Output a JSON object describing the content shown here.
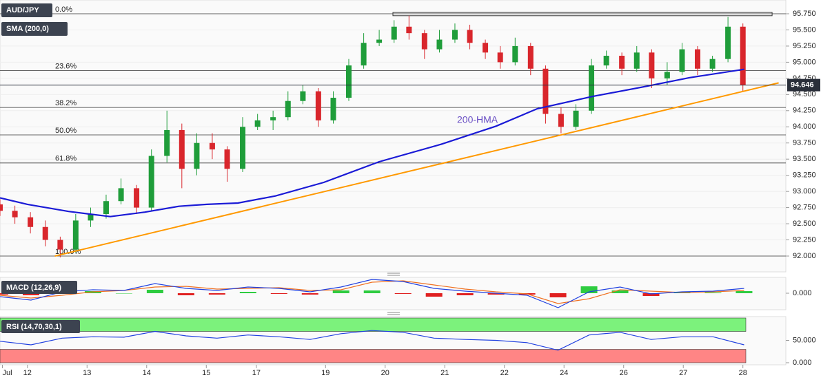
{
  "chart_data": [
    {
      "type": "candlestick",
      "symbol": "AUD/JPY",
      "indicator_label": "SMA (200,0)",
      "xlim": [
        -0.46,
        12.72
      ],
      "ylim": [
        91.755,
        95.963
      ],
      "yticks": [
        {
          "value": 95.75,
          "label": "95.750"
        },
        {
          "value": 95.5,
          "label": "95.500"
        },
        {
          "value": 95.25,
          "label": "95.250"
        },
        {
          "value": 95,
          "label": "95.000"
        },
        {
          "value": 94.75,
          "label": "94.750"
        },
        {
          "value": 94.5,
          "label": "94.500"
        },
        {
          "value": 94.25,
          "label": "94.250"
        },
        {
          "value": 94,
          "label": "94.000"
        },
        {
          "value": 93.75,
          "label": "93.750"
        },
        {
          "value": 93.5,
          "label": "93.500"
        },
        {
          "value": 93.25,
          "label": "93.250"
        },
        {
          "value": 93,
          "label": "93.000"
        },
        {
          "value": 92.75,
          "label": "92.750"
        },
        {
          "value": 92.5,
          "label": "92.500"
        },
        {
          "value": 92.25,
          "label": "92.250"
        },
        {
          "value": 92,
          "label": "92.000"
        }
      ],
      "grid": true,
      "up_color": "#1f9d3a",
      "down_color": "#d9262c",
      "candles": {
        "x": [
          -0.46,
          -0.21,
          0.05,
          0.3,
          0.55,
          0.81,
          1.06,
          1.32,
          1.57,
          1.83,
          2.08,
          2.34,
          2.59,
          2.84,
          3.1,
          3.35,
          3.61,
          3.86,
          4.12,
          4.37,
          4.62,
          4.88,
          5.13,
          5.39,
          5.64,
          5.9,
          6.15,
          6.4,
          6.66,
          6.91,
          7.17,
          7.42,
          7.68,
          7.93,
          8.18,
          8.44,
          8.69,
          8.95,
          9.2,
          9.46,
          9.71,
          9.97,
          10.22,
          10.47,
          10.73,
          10.98,
          11.24,
          11.49,
          11.75,
          12.0
        ],
        "open": [
          92.8,
          92.7,
          92.6,
          92.45,
          92.25,
          92.1,
          92.55,
          92.65,
          92.85,
          93.05,
          92.75,
          93.55,
          93.95,
          93.35,
          93.75,
          93.65,
          93.35,
          94.0,
          94.1,
          94.15,
          94.4,
          94.55,
          94.1,
          94.45,
          94.95,
          95.3,
          95.35,
          95.55,
          95.45,
          95.2,
          95.35,
          95.5,
          95.3,
          95.15,
          95.0,
          95.25,
          94.9,
          94.2,
          94.0,
          94.25,
          94.95,
          95.1,
          94.9,
          95.15,
          94.75,
          94.85,
          95.2,
          94.9,
          95.05,
          95.55
        ],
        "high": [
          92.88,
          92.78,
          92.68,
          92.55,
          92.3,
          92.65,
          92.75,
          92.95,
          93.2,
          93.1,
          93.65,
          94.25,
          94.05,
          93.9,
          93.9,
          93.7,
          94.15,
          94.2,
          94.25,
          94.55,
          94.65,
          94.6,
          94.55,
          95.05,
          95.45,
          95.5,
          95.65,
          95.72,
          95.5,
          95.5,
          95.6,
          95.58,
          95.35,
          95.25,
          95.38,
          95.3,
          94.95,
          94.3,
          94.35,
          95.05,
          95.18,
          95.15,
          95.25,
          95.2,
          95.0,
          95.3,
          95.25,
          95.1,
          95.7,
          95.6
        ],
        "low": [
          92.62,
          92.5,
          92.35,
          92.15,
          91.98,
          92.05,
          92.45,
          92.58,
          92.8,
          92.65,
          92.7,
          93.45,
          93.05,
          93.25,
          93.5,
          93.15,
          93.3,
          93.95,
          93.95,
          94.1,
          94.35,
          94.0,
          94.05,
          94.4,
          94.9,
          95.25,
          95.3,
          95.35,
          95.05,
          95.15,
          95.3,
          95.2,
          95.05,
          94.9,
          94.95,
          94.8,
          94.05,
          93.9,
          93.95,
          94.2,
          94.9,
          94.8,
          94.85,
          94.6,
          94.65,
          94.8,
          94.8,
          94.85,
          95.0,
          94.55
        ],
        "close": [
          92.7,
          92.6,
          92.45,
          92.25,
          92.1,
          92.55,
          92.65,
          92.85,
          93.05,
          92.75,
          93.55,
          93.95,
          93.35,
          93.75,
          93.65,
          93.35,
          94.0,
          94.1,
          94.15,
          94.4,
          94.55,
          94.1,
          94.45,
          94.95,
          95.3,
          95.35,
          95.55,
          95.45,
          95.2,
          95.35,
          95.5,
          95.3,
          95.15,
          95.0,
          95.25,
          94.9,
          94.2,
          94.0,
          94.25,
          94.95,
          95.1,
          94.9,
          95.15,
          94.75,
          94.85,
          95.2,
          94.9,
          95.05,
          95.55,
          94.65
        ]
      },
      "hma": {
        "name": "200-HMA",
        "color": "#1a1ad6",
        "x": [
          -0.46,
          0,
          0.69,
          1.39,
          1.97,
          2.54,
          3.01,
          3.53,
          4.16,
          4.97,
          5.9,
          6.94,
          7.86,
          8.55,
          9.48,
          10.4,
          11.1,
          12.02
        ],
        "values": [
          92.9,
          92.8,
          92.69,
          92.61,
          92.68,
          92.77,
          92.8,
          92.82,
          92.93,
          93.14,
          93.46,
          93.73,
          94.01,
          94.28,
          94.47,
          94.63,
          94.76,
          94.89
        ]
      },
      "trendline": {
        "color": "#ff9900",
        "x": [
          0.46,
          12.6
        ],
        "values": [
          92.0,
          94.68
        ]
      },
      "fib_levels": [
        {
          "label": "0.0%",
          "value": 95.75
        },
        {
          "label": "23.6%",
          "value": 94.87
        },
        {
          "label": "38.2%",
          "value": 94.3
        },
        {
          "label": "50.0%",
          "value": 93.875
        },
        {
          "label": "61.8%",
          "value": 93.44
        },
        {
          "label": "100.0%",
          "value": 92.0
        }
      ],
      "resistance_zone": {
        "x": [
          6.13,
          12.49
        ],
        "values": [
          95.72,
          95.77
        ]
      },
      "last_price": {
        "value": 94.646,
        "label": "94.646"
      }
    },
    {
      "type": "macd",
      "title": "MACD (12,26,9)",
      "xlim": [
        -0.46,
        12.72
      ],
      "ylim": [
        -0.24,
        0.23
      ],
      "yticks": [
        {
          "value": 0,
          "label": "0.000"
        }
      ],
      "x": [
        -0.46,
        0.06,
        0.58,
        1.1,
        1.62,
        2.14,
        2.66,
        3.18,
        3.7,
        4.22,
        4.74,
        5.26,
        5.78,
        6.3,
        6.82,
        7.34,
        7.86,
        8.38,
        8.9,
        9.42,
        9.94,
        10.46,
        10.98,
        11.5,
        12.02
      ],
      "macd": {
        "color": "#2040e0",
        "values": [
          -0.05,
          -0.1,
          0.02,
          0.05,
          0.04,
          0.14,
          0.07,
          0.04,
          0.09,
          0.07,
          0.02,
          0.09,
          0.2,
          0.17,
          0.07,
          0.03,
          0,
          -0.03,
          -0.21,
          0.02,
          0.09,
          -0.01,
          0.02,
          0.03,
          0.07
        ]
      },
      "signal": {
        "color": "#f07020",
        "values": [
          -0.03,
          -0.07,
          -0.03,
          0.02,
          0.04,
          0.09,
          0.1,
          0.06,
          0.07,
          0.08,
          0.04,
          0.05,
          0.16,
          0.18,
          0.12,
          0.06,
          0.02,
          -0.01,
          -0.15,
          -0.08,
          0.05,
          0.03,
          0.01,
          0.02,
          0.04
        ]
      },
      "histogram": {
        "up_color": "#2ecc40",
        "down_color": "#e02020",
        "values": [
          -0.02,
          -0.03,
          0.05,
          0.03,
          0,
          0.05,
          -0.03,
          -0.02,
          0.02,
          -0.01,
          -0.02,
          0.04,
          0.04,
          -0.01,
          -0.05,
          -0.03,
          -0.02,
          -0.02,
          -0.06,
          0.1,
          0.04,
          -0.04,
          0.01,
          0.01,
          0.03
        ]
      }
    },
    {
      "type": "rsi",
      "title": "RSI (14,70,30,1)",
      "xlim": [
        -0.46,
        12.72
      ],
      "ylim": [
        0,
        100
      ],
      "yticks": [
        {
          "value": 50,
          "label": "50.000"
        },
        {
          "value": 0,
          "label": "0.000"
        }
      ],
      "xticks": [
        {
          "value": -0.42,
          "label": "Jul"
        },
        {
          "value": 0,
          "label": "12"
        },
        {
          "value": 1,
          "label": "13"
        },
        {
          "value": 2,
          "label": "14"
        },
        {
          "value": 3,
          "label": "15"
        },
        {
          "value": 3.84,
          "label": "17"
        },
        {
          "value": 5,
          "label": "19"
        },
        {
          "value": 6,
          "label": "20"
        },
        {
          "value": 7,
          "label": "21"
        },
        {
          "value": 8,
          "label": "22"
        },
        {
          "value": 9,
          "label": "24"
        },
        {
          "value": 10,
          "label": "26"
        },
        {
          "value": 11,
          "label": "27"
        },
        {
          "value": 12,
          "label": "28"
        }
      ],
      "overbought": [
        70,
        100
      ],
      "oversold": [
        0,
        30
      ],
      "overbought_color": "#7cf27c",
      "oversold_color": "#ff8585",
      "x": [
        -0.46,
        0.06,
        0.58,
        1.1,
        1.62,
        2.14,
        2.66,
        3.18,
        3.7,
        4.22,
        4.74,
        5.26,
        5.78,
        6.3,
        6.82,
        7.34,
        7.86,
        8.38,
        8.9,
        9.42,
        9.94,
        10.46,
        10.98,
        11.5,
        12.02
      ],
      "color": "#2040e0",
      "values": [
        48,
        40,
        55,
        58,
        57,
        70,
        60,
        55,
        62,
        58,
        52,
        65,
        72,
        68,
        55,
        52,
        50,
        45,
        28,
        62,
        68,
        52,
        58,
        58,
        40
      ]
    }
  ]
}
